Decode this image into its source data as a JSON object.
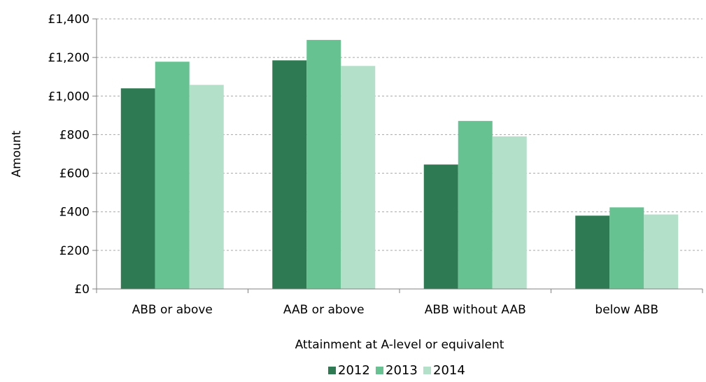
{
  "chart_data": {
    "type": "bar",
    "title": "",
    "xlabel": "Attainment at A-level or equivalent",
    "ylabel": "Amount",
    "categories": [
      "ABB or above",
      "AAB or above",
      "ABB without AAB",
      "below ABB"
    ],
    "series": [
      {
        "name": "2012",
        "color": "#2e7b53",
        "values": [
          1040,
          1185,
          645,
          380
        ]
      },
      {
        "name": "2013",
        "color": "#66c391",
        "values": [
          1178,
          1291,
          871,
          423
        ]
      },
      {
        "name": "2014",
        "color": "#b3e0c8",
        "values": [
          1058,
          1156,
          791,
          386
        ]
      }
    ],
    "ylim": [
      0,
      1400
    ],
    "yticks": [
      0,
      200,
      400,
      600,
      800,
      1000,
      1200,
      1400
    ],
    "ytick_labels": [
      "£0",
      "£200",
      "£400",
      "£600",
      "£800",
      "£1,000",
      "£1,200",
      "£1,400"
    ],
    "grid": "horizontal dashed",
    "legend_position": "bottom-center"
  }
}
